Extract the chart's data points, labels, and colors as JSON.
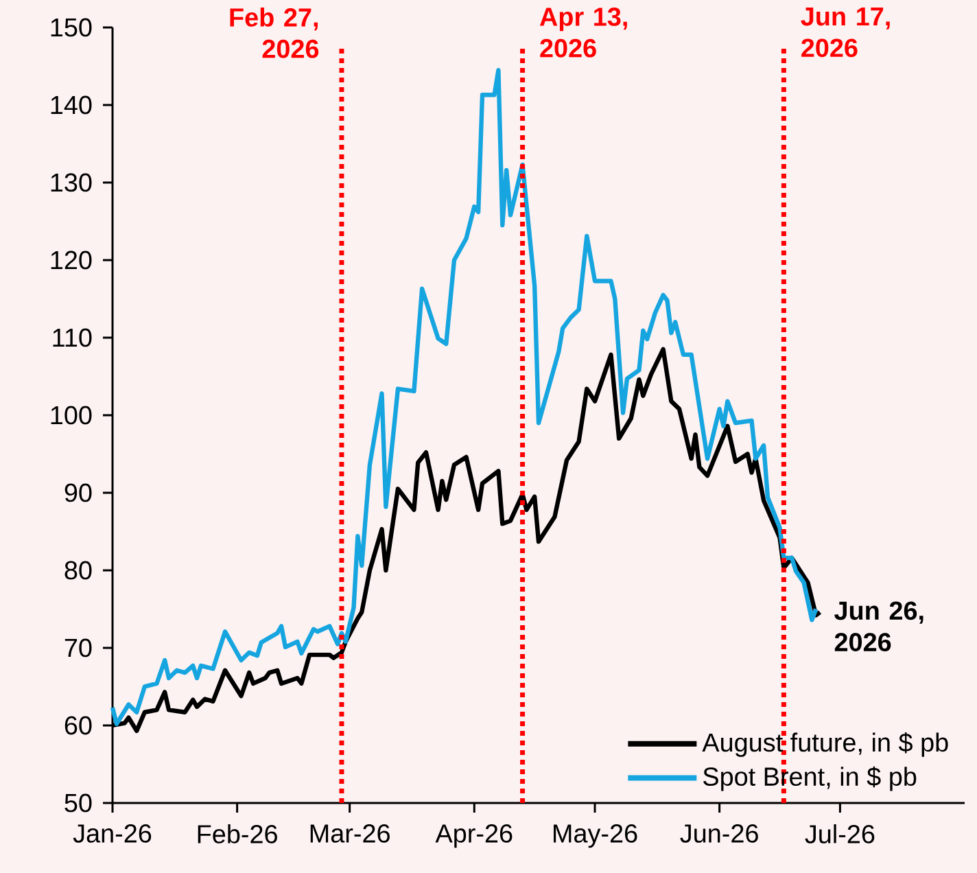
{
  "chart_data": {
    "type": "line",
    "xlim": [
      "2026-01-01",
      "2026-08-01"
    ],
    "xticks": [
      {
        "value": "2026-01-01",
        "label": "Jan-26"
      },
      {
        "value": "2026-02-01",
        "label": "Feb-26"
      },
      {
        "value": "2026-03-01",
        "label": "Mar-26"
      },
      {
        "value": "2026-04-01",
        "label": "Apr-26"
      },
      {
        "value": "2026-05-01",
        "label": "May-26"
      },
      {
        "value": "2026-06-01",
        "label": "Jun-26"
      },
      {
        "value": "2026-07-01",
        "label": "Jul-26"
      }
    ],
    "ylim": [
      50,
      150
    ],
    "yticks": [
      50,
      60,
      70,
      80,
      90,
      100,
      110,
      120,
      130,
      140,
      150
    ],
    "legend": "bottom right",
    "line_style": "solid",
    "series": [
      {
        "name": "August future, in $ pb",
        "color": "#000000",
        "x": [
          "2026-01-01",
          "2026-01-04",
          "2026-01-05",
          "2026-01-07",
          "2026-01-09",
          "2026-01-12",
          "2026-01-14",
          "2026-01-15",
          "2026-01-19",
          "2026-01-21",
          "2026-01-22",
          "2026-01-24",
          "2026-01-26",
          "2026-01-29",
          "2026-02-02",
          "2026-02-04",
          "2026-02-05",
          "2026-02-08",
          "2026-02-09",
          "2026-02-11",
          "2026-02-12",
          "2026-02-16",
          "2026-02-17",
          "2026-02-19",
          "2026-02-24",
          "2026-02-25",
          "2026-02-27",
          "2026-02-28",
          "2026-03-03",
          "2026-03-04",
          "2026-03-06",
          "2026-03-09",
          "2026-03-10",
          "2026-03-13",
          "2026-03-17",
          "2026-03-18",
          "2026-03-20",
          "2026-03-23",
          "2026-03-24",
          "2026-03-25",
          "2026-03-27",
          "2026-03-30",
          "2026-04-02",
          "2026-04-03",
          "2026-04-07",
          "2026-04-08",
          "2026-04-10",
          "2026-04-13",
          "2026-04-14",
          "2026-04-16",
          "2026-04-17",
          "2026-04-21",
          "2026-04-24",
          "2026-04-27",
          "2026-04-29",
          "2026-05-01",
          "2026-05-05",
          "2026-05-07",
          "2026-05-10",
          "2026-05-12",
          "2026-05-13",
          "2026-05-15",
          "2026-05-18",
          "2026-05-20",
          "2026-05-22",
          "2026-05-25",
          "2026-05-26",
          "2026-05-27",
          "2026-05-29",
          "2026-06-03",
          "2026-06-05",
          "2026-06-08",
          "2026-06-09",
          "2026-06-10",
          "2026-06-12",
          "2026-06-16",
          "2026-06-17",
          "2026-06-19",
          "2026-06-23",
          "2026-06-24",
          "2026-06-25",
          "2026-06-26"
        ],
        "values": [
          60,
          60.3,
          61,
          59.3,
          61.7,
          62,
          64.3,
          62,
          61.7,
          63.3,
          62.4,
          63.4,
          63.1,
          67.1,
          63.8,
          66.8,
          65.4,
          66.1,
          66.8,
          67.1,
          65.4,
          66.1,
          65.4,
          69.1,
          69.1,
          68.7,
          69.4,
          70.8,
          73.8,
          74.6,
          80,
          85.3,
          80,
          90.5,
          87.8,
          93.9,
          95.2,
          87.8,
          91.5,
          89.1,
          93.6,
          94.6,
          87.8,
          91.2,
          92.8,
          86,
          86.4,
          89.8,
          87.8,
          89.5,
          83.7,
          86.9,
          94.2,
          96.6,
          103.4,
          101.8,
          107.8,
          97,
          99.6,
          104.6,
          102.5,
          105.3,
          108.5,
          101.8,
          100.8,
          94.4,
          97.5,
          93.3,
          92.2,
          98.6,
          94,
          95,
          92.6,
          94.4,
          89,
          84.2,
          80.3,
          81.6,
          78.4,
          76.3,
          74.2,
          74.6
        ]
      },
      {
        "name": "Spot Brent, in $ pb",
        "color": "#17a5e0",
        "x": [
          "2026-01-01",
          "2026-01-02",
          "2026-01-05",
          "2026-01-07",
          "2026-01-09",
          "2026-01-12",
          "2026-01-14",
          "2026-01-15",
          "2026-01-17",
          "2026-01-19",
          "2026-01-21",
          "2026-01-22",
          "2026-01-23",
          "2026-01-26",
          "2026-01-29",
          "2026-02-02",
          "2026-02-04",
          "2026-02-06",
          "2026-02-07",
          "2026-02-11",
          "2026-02-12",
          "2026-02-13",
          "2026-02-16",
          "2026-02-17",
          "2026-02-20",
          "2026-02-21",
          "2026-02-24",
          "2026-02-26",
          "2026-02-27",
          "2026-02-28",
          "2026-03-02",
          "2026-03-03",
          "2026-03-04",
          "2026-03-06",
          "2026-03-09",
          "2026-03-10",
          "2026-03-13",
          "2026-03-17",
          "2026-03-19",
          "2026-03-23",
          "2026-03-25",
          "2026-03-27",
          "2026-03-30",
          "2026-04-01",
          "2026-04-02",
          "2026-04-03",
          "2026-04-06",
          "2026-04-07",
          "2026-04-08",
          "2026-04-09",
          "2026-04-10",
          "2026-04-13",
          "2026-04-16",
          "2026-04-17",
          "2026-04-22",
          "2026-04-23",
          "2026-04-25",
          "2026-04-27",
          "2026-04-29",
          "2026-05-01",
          "2026-05-05",
          "2026-05-06",
          "2026-05-08",
          "2026-05-09",
          "2026-05-12",
          "2026-05-13",
          "2026-05-14",
          "2026-05-16",
          "2026-05-18",
          "2026-05-19",
          "2026-05-20",
          "2026-05-21",
          "2026-05-23",
          "2026-05-25",
          "2026-05-29",
          "2026-06-01",
          "2026-06-02",
          "2026-06-03",
          "2026-06-05",
          "2026-06-09",
          "2026-06-10",
          "2026-06-12",
          "2026-06-13",
          "2026-06-16",
          "2026-06-17",
          "2026-06-19",
          "2026-06-20",
          "2026-06-22",
          "2026-06-24",
          "2026-06-25"
        ],
        "values": [
          62.3,
          60.2,
          62.7,
          61.7,
          65,
          65.4,
          68.4,
          66.1,
          67.1,
          66.8,
          67.7,
          66.1,
          67.7,
          67.3,
          72.1,
          68.4,
          69.4,
          69,
          70.7,
          71.9,
          72.8,
          70.1,
          70.8,
          69.3,
          72.4,
          72.1,
          72.8,
          70.5,
          71.9,
          70.8,
          75.2,
          84.4,
          80.6,
          93.6,
          102.8,
          88.2,
          103.4,
          103.1,
          116.3,
          109.9,
          109.2,
          120,
          122.8,
          126.9,
          126.2,
          141.3,
          141.3,
          144.5,
          124.5,
          131.6,
          125.8,
          132.3,
          116.7,
          99,
          108.2,
          111.2,
          112.6,
          113.6,
          123.1,
          117.3,
          117.3,
          115,
          100.3,
          104.7,
          105.8,
          110.9,
          109.8,
          113.2,
          115.5,
          114.8,
          110.6,
          112,
          107.8,
          107.8,
          94.4,
          100.8,
          98.6,
          101.8,
          99,
          99.3,
          94.4,
          96.1,
          89.4,
          85.5,
          81.6,
          81.6,
          79.9,
          78.4,
          73.6,
          75
        ]
      }
    ],
    "ref_lines": [
      {
        "axis": "x",
        "value": "2026-02-27",
        "label": "Feb 27, 2026",
        "color": "#ff0000",
        "line_style": "dotted"
      },
      {
        "axis": "x",
        "value": "2026-04-13",
        "label": "Apr 13, 2026",
        "color": "#ff0000",
        "line_style": "dotted"
      },
      {
        "axis": "x",
        "value": "2026-06-17",
        "label": "Jun 17, 2026",
        "color": "#ff0000",
        "line_style": "dotted"
      }
    ],
    "annotations": [
      {
        "text": "Jun 26, 2026",
        "x": "2026-06-26",
        "y": 74.6
      }
    ]
  }
}
